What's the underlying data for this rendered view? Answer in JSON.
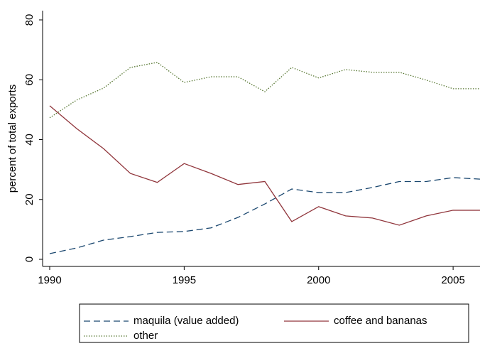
{
  "chart_data": {
    "type": "line",
    "x": [
      1990,
      1991,
      1992,
      1993,
      1994,
      1995,
      1996,
      1997,
      1998,
      1999,
      2000,
      2001,
      2002,
      2003,
      2004,
      2005,
      2006
    ],
    "xlim": [
      1990,
      2006
    ],
    "xticks": [
      1990,
      1995,
      2000,
      2005
    ],
    "ylim": [
      0,
      80
    ],
    "yticks": [
      0,
      20,
      40,
      60,
      80
    ],
    "ylabel": "percent of total exports",
    "series": [
      {
        "name": "maquila (value added)",
        "color": "#1a476f",
        "dash": "dashed",
        "values": [
          1.9,
          3.8,
          6.4,
          7.6,
          9,
          9.3,
          10.5,
          14,
          18.5,
          23.5,
          22.3,
          22.3,
          24,
          26,
          26,
          27.3,
          26.8
        ]
      },
      {
        "name": "coffee and bananas",
        "color": "#90353b",
        "dash": "solid",
        "values": [
          51.3,
          43.7,
          37,
          28.7,
          25.7,
          32,
          28.7,
          25,
          26,
          12.6,
          17.6,
          14.5,
          13.8,
          11.4,
          14.5,
          16.4,
          16.4
        ]
      },
      {
        "name": "other",
        "color": "#55752f",
        "dash": "dotted",
        "values": [
          47.3,
          53.2,
          57.2,
          64.1,
          65.8,
          59.1,
          61,
          61,
          56,
          64.1,
          60.6,
          63.4,
          62.5,
          62.5,
          59.9,
          57,
          57
        ]
      }
    ]
  }
}
